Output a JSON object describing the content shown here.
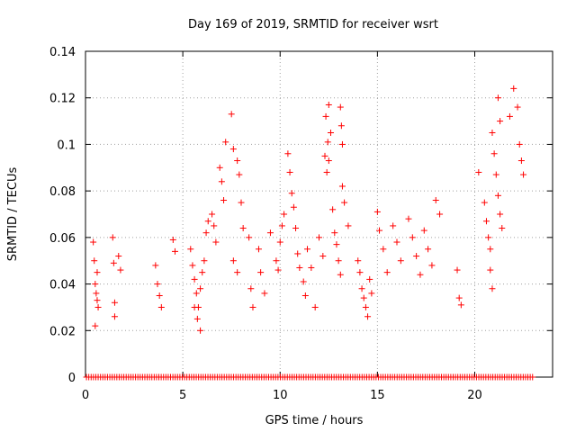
{
  "chart_data": {
    "type": "scatter",
    "title": "Day 169 of 2019, SRMTID for receiver wsrt",
    "xlabel": "GPS time / hours",
    "ylabel": "SRMTID / TECUs",
    "xlim": [
      0,
      24
    ],
    "ylim": [
      0,
      0.14
    ],
    "x_ticks": [
      0,
      5,
      10,
      15,
      20
    ],
    "x_tick_labels": [
      "0",
      "5",
      "10",
      "15",
      "20"
    ],
    "y_ticks": [
      0,
      0.02,
      0.04,
      0.06,
      0.08,
      0.1,
      0.12,
      0.14
    ],
    "y_tick_labels": [
      "0",
      "0.02",
      "0.04",
      "0.06",
      "0.08",
      "0.1",
      "0.12",
      "0.14"
    ],
    "grid": true,
    "marker": "plus",
    "color": "#ff0000",
    "series": [
      {
        "name": "SRMTID",
        "x": [
          0.4,
          0.45,
          0.5,
          0.55,
          0.6,
          0.65,
          0.5,
          0.6,
          1.4,
          1.45,
          1.5,
          1.5,
          1.7,
          1.8,
          3.6,
          3.7,
          3.8,
          3.9,
          4.5,
          4.6,
          5.4,
          5.5,
          5.6,
          5.7,
          5.8,
          5.9,
          6.0,
          6.1,
          6.2,
          6.3,
          5.6,
          5.75,
          5.9,
          6.5,
          6.6,
          6.7,
          6.9,
          7.0,
          7.1,
          7.2,
          7.5,
          7.6,
          7.8,
          7.9,
          8.0,
          8.1,
          7.6,
          7.8,
          8.4,
          8.5,
          8.6,
          8.9,
          9.0,
          9.2,
          9.5,
          9.8,
          9.9,
          10.0,
          10.1,
          10.2,
          10.4,
          10.5,
          10.6,
          10.7,
          10.8,
          10.9,
          11.0,
          11.2,
          11.3,
          11.4,
          11.6,
          11.8,
          12.0,
          12.2,
          12.3,
          12.4,
          12.5,
          12.6,
          12.7,
          12.8,
          12.9,
          13.0,
          13.1,
          13.2,
          13.3,
          13.5,
          12.35,
          12.45,
          12.5,
          13.1,
          13.15,
          13.2,
          14.0,
          14.1,
          14.2,
          14.3,
          14.4,
          14.5,
          14.6,
          14.7,
          15.0,
          15.1,
          15.3,
          15.5,
          15.8,
          16.0,
          16.2,
          16.6,
          16.8,
          17.0,
          17.2,
          17.4,
          17.6,
          17.8,
          18.0,
          18.2,
          19.1,
          19.2,
          19.3,
          20.2,
          20.5,
          20.6,
          20.7,
          20.8,
          20.9,
          21.0,
          21.1,
          21.2,
          21.3,
          21.4,
          20.8,
          20.9,
          21.2,
          21.3,
          21.8,
          22.0,
          22.2,
          22.3,
          22.4,
          22.5
        ],
        "y": [
          0.058,
          0.05,
          0.04,
          0.036,
          0.033,
          0.03,
          0.022,
          0.045,
          0.06,
          0.049,
          0.032,
          0.026,
          0.052,
          0.046,
          0.048,
          0.04,
          0.035,
          0.03,
          0.059,
          0.054,
          0.055,
          0.048,
          0.042,
          0.036,
          0.03,
          0.02,
          0.045,
          0.05,
          0.062,
          0.067,
          0.03,
          0.025,
          0.038,
          0.07,
          0.065,
          0.058,
          0.09,
          0.084,
          0.076,
          0.101,
          0.113,
          0.098,
          0.093,
          0.087,
          0.075,
          0.064,
          0.05,
          0.045,
          0.06,
          0.038,
          0.03,
          0.055,
          0.045,
          0.036,
          0.062,
          0.05,
          0.046,
          0.058,
          0.065,
          0.07,
          0.096,
          0.088,
          0.079,
          0.073,
          0.064,
          0.053,
          0.047,
          0.041,
          0.035,
          0.055,
          0.047,
          0.03,
          0.06,
          0.052,
          0.095,
          0.088,
          0.117,
          0.105,
          0.072,
          0.062,
          0.057,
          0.05,
          0.044,
          0.082,
          0.075,
          0.065,
          0.112,
          0.101,
          0.093,
          0.116,
          0.108,
          0.1,
          0.05,
          0.045,
          0.038,
          0.034,
          0.03,
          0.026,
          0.042,
          0.036,
          0.071,
          0.063,
          0.055,
          0.045,
          0.065,
          0.058,
          0.05,
          0.068,
          0.06,
          0.052,
          0.044,
          0.063,
          0.055,
          0.048,
          0.076,
          0.07,
          0.046,
          0.034,
          0.031,
          0.088,
          0.075,
          0.067,
          0.06,
          0.055,
          0.105,
          0.096,
          0.087,
          0.078,
          0.07,
          0.064,
          0.046,
          0.038,
          0.12,
          0.11,
          0.112,
          0.124,
          0.116,
          0.1,
          0.093,
          0.087
        ],
        "zero_level_points": true
      }
    ]
  }
}
